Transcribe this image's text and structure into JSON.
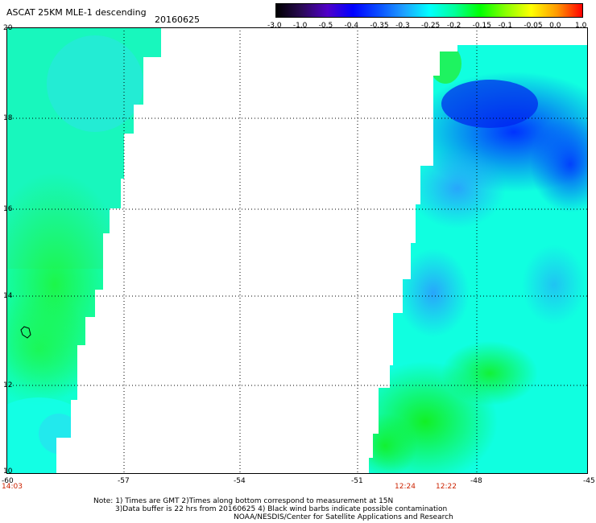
{
  "header": {
    "title": "ASCAT 25KM MLE-1 descending",
    "date": "20160625"
  },
  "colorbar": {
    "labels": [
      "-3.0",
      "-1.0",
      "-0.5",
      "-0.4",
      "-0.35",
      "-0.3",
      "-0.25",
      "-0.2",
      "-0.15",
      "-0.1",
      "-0.05",
      "0.0",
      "1.0"
    ],
    "colors": [
      "#000000",
      "#2a0a55",
      "#5000c8",
      "#0000ff",
      "#0a4cff",
      "#1ea0ff",
      "#00ffff",
      "#00ff9a",
      "#00ff00",
      "#8aff00",
      "#ffff00",
      "#ff9900",
      "#ff0000"
    ]
  },
  "map": {
    "y_ticks": [
      "20",
      "18",
      "16",
      "14",
      "12",
      "10"
    ],
    "x_ticks": [
      "-60",
      "-57",
      "-54",
      "-51",
      "-48",
      "-45"
    ],
    "pass_times": [
      "14:03",
      "12:24",
      "12:22"
    ],
    "swath_colors": {
      "green": "#10f230",
      "cyan": "#10ffe0",
      "aqua": "#20ffc8",
      "light_blue": "#1e90ff",
      "blue": "#0a50ff",
      "deep_blue": "#0030ff"
    }
  },
  "notes": {
    "line1": "Note: 1) Times are GMT 2)Times along bottom correspond to measurement at 15N",
    "line2": "3)Data buffer is 22 hrs from 20160625 4) Black wind barbs indicate possible contamination",
    "line3": "NOAA/NESDIS/Center for Satellite Applications and Research"
  }
}
